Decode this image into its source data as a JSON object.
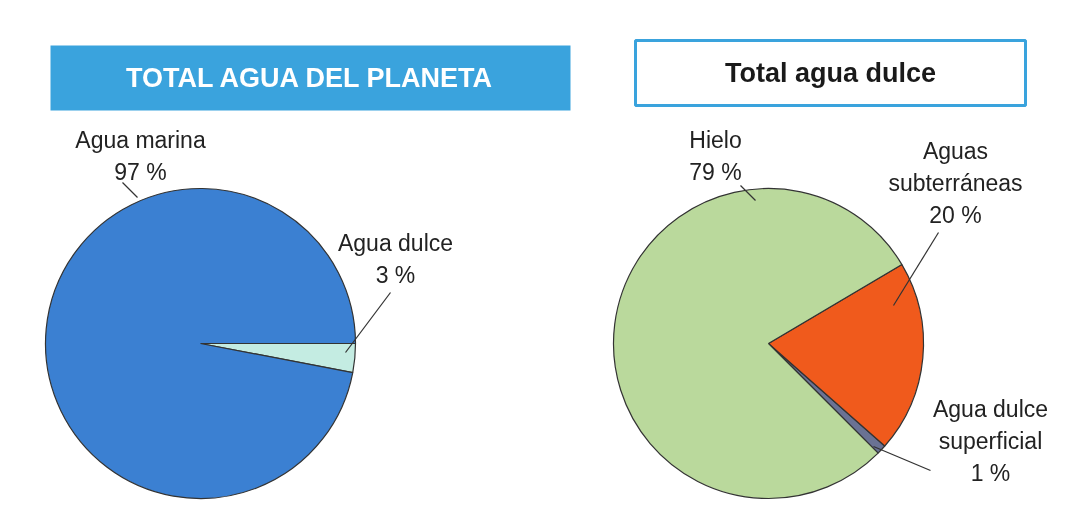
{
  "chart_data": [
    {
      "type": "pie",
      "title": "TOTAL AGUA DEL PLANETA",
      "categories": [
        "Agua dulce",
        "Agua marina"
      ],
      "values": [
        3,
        97
      ],
      "colors": [
        "#c4ece2",
        "#3b80d2"
      ],
      "value_labels": [
        "3 %",
        "97 %"
      ]
    },
    {
      "type": "pie",
      "title": "Total agua dulce",
      "categories": [
        "Agua dulce superficial",
        "Aguas subterráneas",
        "Hielo"
      ],
      "values": [
        1,
        20,
        79
      ],
      "colors": [
        "#6a7294",
        "#f05a1c",
        "#bad99c"
      ],
      "value_labels": [
        "1 %",
        "20 %",
        "79 %"
      ]
    }
  ]
}
